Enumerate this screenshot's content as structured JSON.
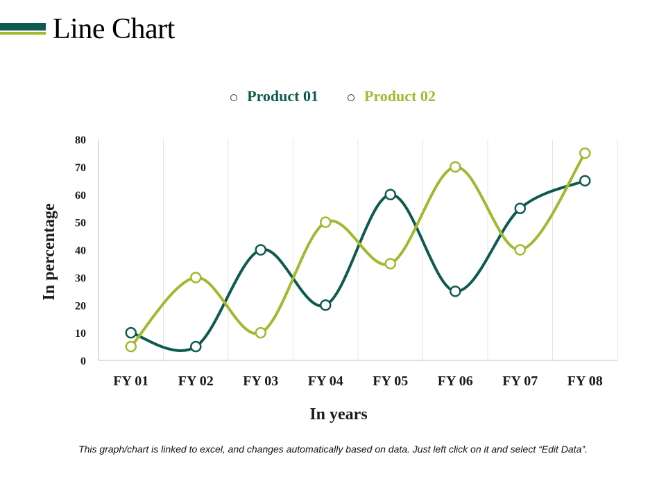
{
  "page": {
    "title": "Line Chart",
    "footnote": "This graph/chart is linked to excel, and changes automatically based on data. Just left click on it and select “Edit Data”."
  },
  "colors": {
    "accent_dark": "#0e5a4f",
    "accent_light": "#9fba2e"
  },
  "chart_data": {
    "type": "line",
    "categories": [
      "FY 01",
      "FY 02",
      "FY 03",
      "FY 04",
      "FY 05",
      "FY 06",
      "FY 07",
      "FY 08"
    ],
    "series": [
      {
        "name": "Product 01",
        "color": "#0e5a4f",
        "values": [
          10,
          5,
          40,
          20,
          60,
          25,
          55,
          65
        ]
      },
      {
        "name": "Product 02",
        "color": "#9fba2e",
        "values": [
          5,
          30,
          10,
          50,
          35,
          70,
          40,
          75
        ]
      }
    ],
    "xlabel": "In years",
    "ylabel": "In percentage",
    "ylim": [
      0,
      80
    ],
    "yticks": [
      0,
      10,
      20,
      30,
      40,
      50,
      60,
      70,
      80
    ],
    "grid": "vertical",
    "legend": "top-center",
    "smooth": true,
    "markers": "hollow-circle"
  }
}
